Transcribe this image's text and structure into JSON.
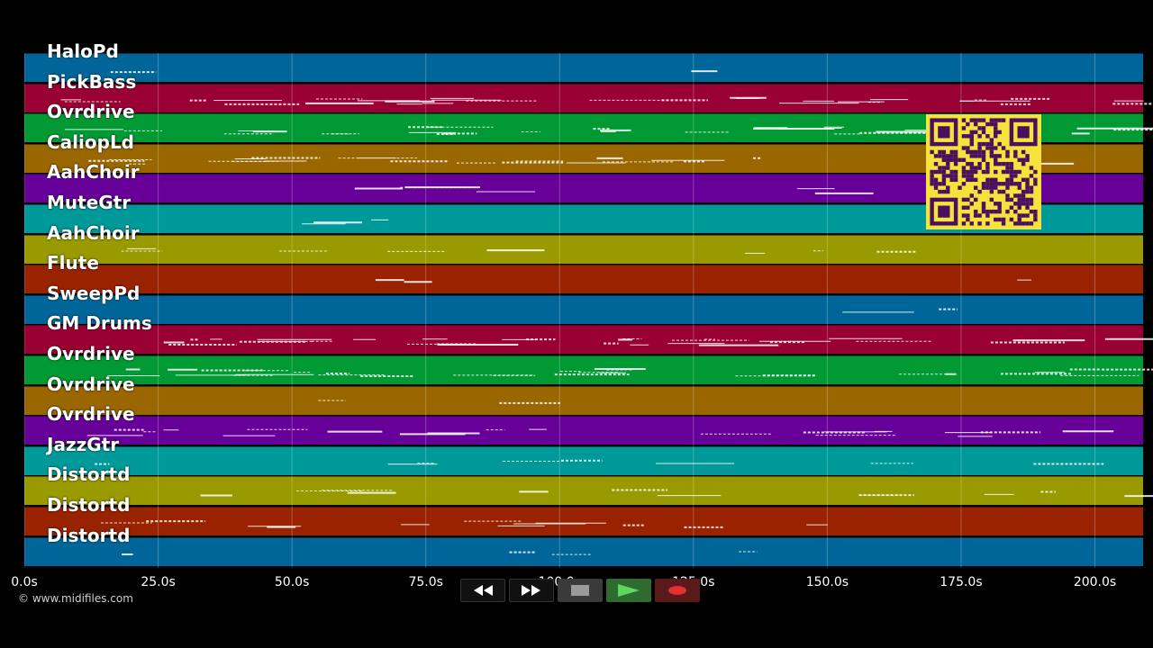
{
  "lanes": [
    {
      "name": "HaloPd",
      "color": "#006699"
    },
    {
      "name": "PickBass",
      "color": "#990033"
    },
    {
      "name": "Ovrdrive",
      "color": "#009933"
    },
    {
      "name": "CaliopLd",
      "color": "#996600"
    },
    {
      "name": "AahChoir",
      "color": "#660099"
    },
    {
      "name": "MuteGtr",
      "color": "#009999"
    },
    {
      "name": "AahChoir",
      "color": "#999900"
    },
    {
      "name": "Flute",
      "color": "#992200"
    },
    {
      "name": "SweepPd",
      "color": "#006699"
    },
    {
      "name": "GM Drums",
      "color": "#990033"
    },
    {
      "name": "Ovrdrive",
      "color": "#009933"
    },
    {
      "name": "Ovrdrive",
      "color": "#996600"
    },
    {
      "name": "Ovrdrive",
      "color": "#660099"
    },
    {
      "name": "JazzGtr",
      "color": "#009999"
    },
    {
      "name": "Distortd",
      "color": "#999900"
    },
    {
      "name": "Distortd",
      "color": "#992200"
    },
    {
      "name": "Distortd",
      "color": "#006699"
    }
  ],
  "timeline": {
    "ticks": [
      "0.0s",
      "25.0s",
      "50.0s",
      "75.0s",
      "100.0s",
      "125.0s",
      "150.0s",
      "175.0s",
      "200.0s"
    ],
    "tick_values": [
      0,
      25,
      50,
      75,
      100,
      125,
      150,
      175,
      200
    ],
    "max_seconds": 209
  },
  "footer": {
    "copyright": "© www.midifiles.com"
  },
  "controls": {
    "rewind": "rewind-icon",
    "fast_forward": "fast-forward-icon",
    "stop": "stop-icon",
    "play": "play-icon",
    "record": "record-icon",
    "play_color": "#5cd65c",
    "record_color": "#e03030"
  },
  "qr": {
    "bg": "#f5e23b",
    "fg": "#4a1060"
  }
}
